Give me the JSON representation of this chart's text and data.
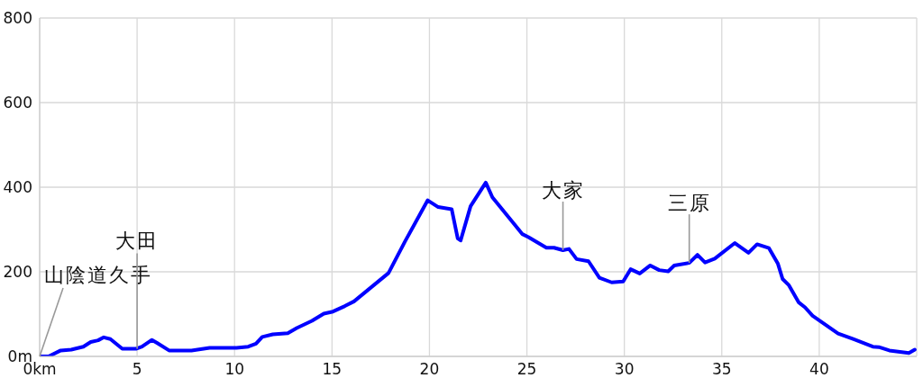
{
  "chart_data": {
    "type": "line",
    "xlim": [
      0,
      45
    ],
    "xticks": [
      {
        "value": 0,
        "label": "0km"
      },
      5,
      10,
      15,
      20,
      25,
      30,
      35,
      40
    ],
    "ylim": [
      0,
      800
    ],
    "yticks": [
      {
        "value": 0,
        "label": "0m"
      },
      200,
      400,
      600,
      800
    ],
    "grid": true,
    "marker": "none",
    "line_style": "solid",
    "x": [
      0,
      0.46,
      1.08,
      1.62,
      2.24,
      2.62,
      3.0,
      3.29,
      3.63,
      4.24,
      4.94,
      5.25,
      5.76,
      6.02,
      6.64,
      7.79,
      8.72,
      10.1,
      10.7,
      11.1,
      11.42,
      11.96,
      12.73,
      13.19,
      13.97,
      14.58,
      15.05,
      15.66,
      16.13,
      17.9,
      18.75,
      19.91,
      20.45,
      21.14,
      21.45,
      21.6,
      22.11,
      22.89,
      23.23,
      24.77,
      25.08,
      26.0,
      26.39,
      26.85,
      27.16,
      27.55,
      28.16,
      28.72,
      29.35,
      29.94,
      30.32,
      30.79,
      31.33,
      31.79,
      32.25,
      32.56,
      33.33,
      33.75,
      34.14,
      34.64,
      35.67,
      36.37,
      36.81,
      37.42,
      37.88,
      38.12,
      38.43,
      38.94,
      39.27,
      39.66,
      40.97,
      41.74,
      42.75,
      43.06,
      43.6,
      44.6,
      44.9
    ],
    "series": [
      {
        "color": "#0000ff",
        "values": [
          0,
          0,
          14,
          16,
          23,
          34,
          38,
          45,
          41,
          18,
          18,
          23,
          39,
          32,
          14,
          14,
          20,
          20,
          23,
          30,
          46,
          52,
          55,
          67,
          84,
          101,
          106,
          119,
          130,
          197,
          272,
          369,
          353,
          348,
          279,
          274,
          355,
          411,
          376,
          289,
          282,
          257,
          257,
          251,
          254,
          230,
          225,
          186,
          175,
          177,
          206,
          196,
          215,
          204,
          201,
          215,
          221,
          240,
          222,
          231,
          268,
          245,
          265,
          256,
          219,
          183,
          169,
          128,
          116,
          96,
          54,
          41,
          23,
          22,
          14,
          8,
          16
        ]
      }
    ],
    "annotations": [
      {
        "text": "山陰道久手",
        "x": 0,
        "y": 0
      },
      {
        "text": "大田",
        "x": 5,
        "y": 18
      },
      {
        "text": "大家",
        "x": 26.85,
        "y": 251
      },
      {
        "text": "三原",
        "x": 33.33,
        "y": 221
      }
    ]
  }
}
